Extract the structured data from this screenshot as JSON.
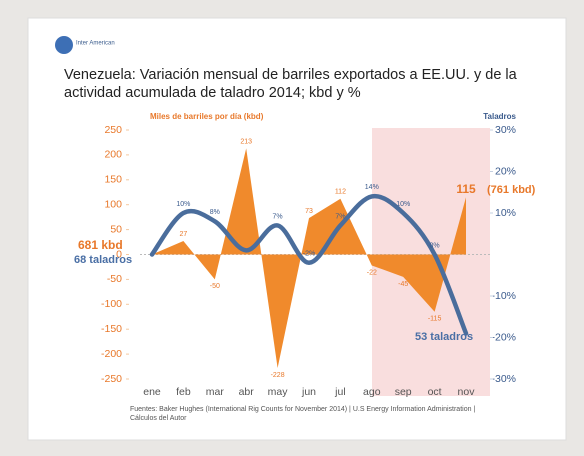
{
  "chart_data": {
    "type": "combo",
    "logo": "Inter American",
    "title": "Venezuela: Variación mensual de barriles exportados a EE.UU. y de la actividad acumulada de taladro 2014; kbd y %",
    "ylabel": "Miles de barriles por día  (kbd)",
    "y2label": "Taladros",
    "categories": [
      "ene",
      "feb",
      "mar",
      "abr",
      "may",
      "jun",
      "jul",
      "ago",
      "sep",
      "oct",
      "nov"
    ],
    "series": [
      {
        "type": "area",
        "axis": "y",
        "color": "#f08a2c",
        "values": [
          0,
          27,
          -50,
          213,
          -228,
          73,
          112,
          -22,
          -45,
          -115,
          115
        ],
        "value_labels": [
          null,
          "27",
          "-50",
          "213",
          "-228",
          "73",
          "112",
          "-22",
          "-45",
          "-115",
          "115"
        ]
      },
      {
        "type": "line",
        "axis": "y2",
        "color": "#4a6d9c",
        "values": [
          0,
          10,
          8,
          1,
          7,
          -2,
          7,
          14,
          10,
          0,
          -19
        ],
        "value_labels": [
          null,
          "10%",
          "8%",
          null,
          "7%",
          "-2%",
          "7%",
          "14%",
          "10%",
          "0%",
          null
        ]
      }
    ],
    "ylim": [
      -250,
      250
    ],
    "yticks": [
      -250,
      -200,
      -150,
      -100,
      -50,
      0,
      50,
      100,
      150,
      200,
      250
    ],
    "y2lim": [
      -30,
      30
    ],
    "y2ticks": [
      {
        "value": -30,
        "label": "-30%"
      },
      {
        "value": -20,
        "label": "-20%"
      },
      {
        "value": -10,
        "label": "-10%"
      },
      {
        "value": 10,
        "label": "10%"
      },
      {
        "value": 20,
        "label": "20%"
      },
      {
        "value": 30,
        "label": "30%"
      }
    ],
    "annotations": [
      "681 kbd",
      "68 taladros",
      "(761 kbd)",
      "53 taladros"
    ],
    "source": "Fuentes: Baker Hughes (International Rig Counts for November 2014) |  U.S Energy Information Administration | Cálculos del Autor"
  }
}
